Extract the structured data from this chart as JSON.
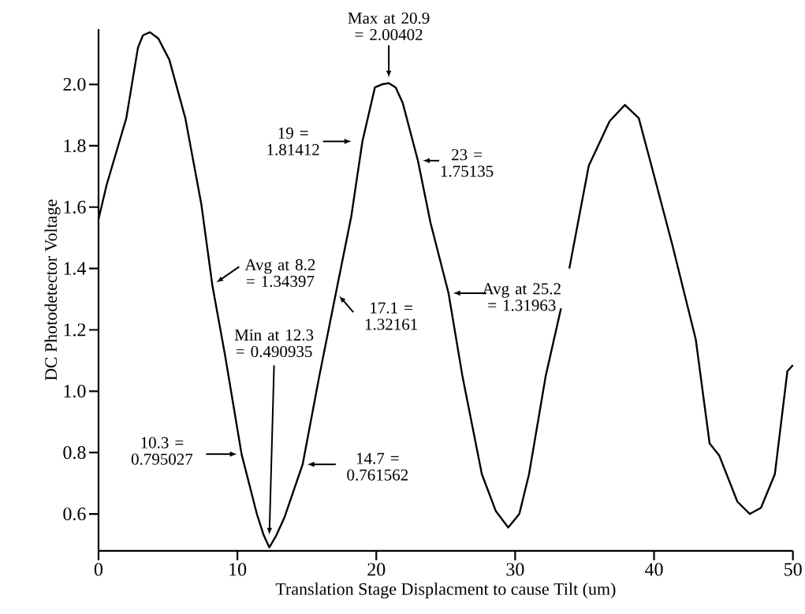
{
  "chart_data": {
    "type": "line",
    "xlabel": "Translation Stage Displacment  to cause Tilt (um)",
    "ylabel": "DC Photodetector Voltage",
    "x": [
      0,
      0.57,
      2.0,
      2.84,
      3.2,
      3.7,
      4.3,
      5.1,
      6.25,
      7.4,
      8.2,
      9.1,
      10.3,
      11.4,
      11.9,
      12.3,
      12.8,
      13.4,
      14.7,
      15.9,
      17.1,
      18.2,
      19,
      19.9,
      20.4,
      20.9,
      21.4,
      21.9,
      23,
      23.9,
      25.2,
      26.2,
      27.6,
      28.6,
      29.5,
      30.3,
      31.0,
      32.2,
      33.3,
      33.6,
      33.9,
      35.3,
      36.8,
      37.9,
      38.9,
      39.9,
      41.3,
      43.0,
      44.0,
      44.7,
      46.0,
      46.9,
      47.7,
      48.7,
      49.6,
      50
    ],
    "values": [
      1.56,
      1.67,
      1.89,
      2.12,
      2.16,
      2.17,
      2.15,
      2.08,
      1.89,
      1.61,
      1.344,
      1.12,
      0.795,
      0.6,
      0.53,
      0.491,
      0.53,
      0.59,
      0.762,
      1.05,
      1.322,
      1.57,
      1.814,
      1.99,
      2.0,
      2.004,
      1.99,
      1.94,
      1.751,
      1.55,
      1.32,
      1.05,
      0.73,
      0.61,
      0.556,
      0.6,
      0.73,
      1.05,
      1.27,
      null,
      1.4,
      1.735,
      1.88,
      1.933,
      1.89,
      1.72,
      1.48,
      1.17,
      0.83,
      0.79,
      0.64,
      0.6,
      0.62,
      0.73,
      1.065,
      1.085
    ],
    "color": "#000000",
    "marker": "none",
    "line_style": "solid",
    "grid": false,
    "xlim": [
      0,
      50
    ],
    "ylim": [
      0.48,
      2.18
    ],
    "xticks": [
      0,
      10,
      20,
      30,
      40,
      50
    ],
    "yticks": [
      0.6,
      0.8,
      {
        "value": 1,
        "label": "1.0"
      },
      1.2,
      1.4,
      1.6,
      1.8,
      {
        "value": 2,
        "label": "2.0"
      }
    ],
    "annotations": [
      {
        "text": "Max at 20.9 = 2.00402",
        "x": 20.9,
        "y": 2.00402
      },
      {
        "text": "19 = 1.81412",
        "x": 19,
        "y": 1.81412
      },
      {
        "text": "23 = 1.75135",
        "x": 23,
        "y": 1.75135
      },
      {
        "text": "Avg at 8.2 = 1.34397",
        "x": 8.2,
        "y": 1.34397
      },
      {
        "text": "17.1 = 1.32161",
        "x": 17.1,
        "y": 1.32161
      },
      {
        "text": "Avg at 25.2 = 1.31963",
        "x": 25.2,
        "y": 1.31963
      },
      "Min at 12.3 = 0.490935",
      {
        "text": "10.3 = 0.795027",
        "x": 10.3,
        "y": 0.795027
      },
      {
        "text": "14.7 = 0.761562",
        "x": 14.7,
        "y": 0.761562
      }
    ]
  }
}
